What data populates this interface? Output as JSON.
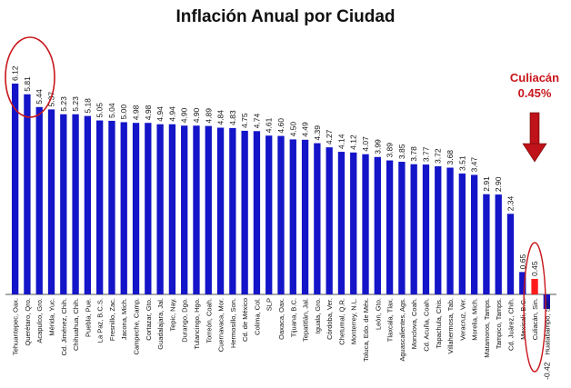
{
  "chart_data": {
    "type": "bar",
    "title": "Inflación Anual por Ciudad",
    "highlight": {
      "category": "Culiacán, Sin.",
      "label_city": "Culiacán",
      "label_value": "0.45%"
    },
    "colors": {
      "bar": "#1414c8",
      "highlight_bar": "#ff1a1a",
      "annotation": "#c8151b",
      "arrow": "#c0121a"
    },
    "ylim": [
      -0.42,
      6.5
    ],
    "grid": false,
    "categories": [
      "Tehuantepec, Oax.",
      "Querétaro, Qro.",
      "Acapulco, Gro.",
      "Mérida, Yuc.",
      "Cd. Jiménez, Chih.",
      "Chihuahua, Chih.",
      "Puebla, Pue.",
      "La Paz, B.C.S.",
      "Fresnillo, Zac.",
      "Jacona, Mich.",
      "Campeche, Camp.",
      "Cortazar, Gto.",
      "Guadalajara, Jal.",
      "Tepic, Nay.",
      "Durango, Dgo.",
      "Tulancingo, Hgo.",
      "Torreón, Coah.",
      "Cuernavaca, Mor.",
      "Hermosillo, Son.",
      "Cd. de México",
      "Colima, Col.",
      "SLP",
      "Oaxaca, Oax.",
      "Tijuana, B.C.",
      "Tepatitlán, Jal.",
      "Iguala, Gro.",
      "Córdoba, Ver.",
      "Chetumal, Q.R.",
      "Monterrey, N.L.",
      "Toluca, Edo. de Méx.",
      "León, Gto.",
      "Tlaxcala, Tlax.",
      "Aguascalientes, Ags.",
      "Monclova, Coah.",
      "Cd. Acuña, Coah.",
      "Tapachula, Chis.",
      "Villahermosa, Tab.",
      "Veracruz, Ver.",
      "Morelia, Mich.",
      "Matamoros, Tamps.",
      "Tampico, Tamps.",
      "Cd. Juárez, Chih.",
      "Mexicali, B.C.",
      "Culiacán, Sin.",
      "Huatabampo, Son."
    ],
    "values": [
      6.12,
      5.81,
      5.44,
      5.37,
      5.23,
      5.23,
      5.18,
      5.05,
      5.04,
      5.0,
      4.98,
      4.98,
      4.94,
      4.94,
      4.9,
      4.9,
      4.89,
      4.84,
      4.83,
      4.75,
      4.74,
      4.61,
      4.6,
      4.5,
      4.49,
      4.39,
      4.27,
      4.14,
      4.12,
      4.07,
      3.99,
      3.89,
      3.85,
      3.78,
      3.77,
      3.72,
      3.68,
      3.51,
      3.47,
      2.91,
      2.9,
      2.34,
      0.65,
      0.45,
      -0.42
    ],
    "value_labels": [
      "6.12",
      "5.81",
      "5.44",
      "5.37",
      "5.23",
      "5.23",
      "5.18",
      "5.05",
      "5.04",
      "5.00",
      "4.98",
      "4.98",
      "4.94",
      "4.94",
      "4.90",
      "4.90",
      "4.89",
      "4.84",
      "4.83",
      "4.75",
      "4.74",
      "4.61",
      "4.60",
      "4.50",
      "4.49",
      "4.39",
      "4.27",
      "4.14",
      "4.12",
      "4.07",
      "3.99",
      "3.89",
      "3.85",
      "3.78",
      "3.77",
      "3.72",
      "3.68",
      "3.51",
      "3.47",
      "2.91",
      "2.90",
      "2.34",
      "0.65",
      "0.45",
      "-0.42"
    ]
  }
}
